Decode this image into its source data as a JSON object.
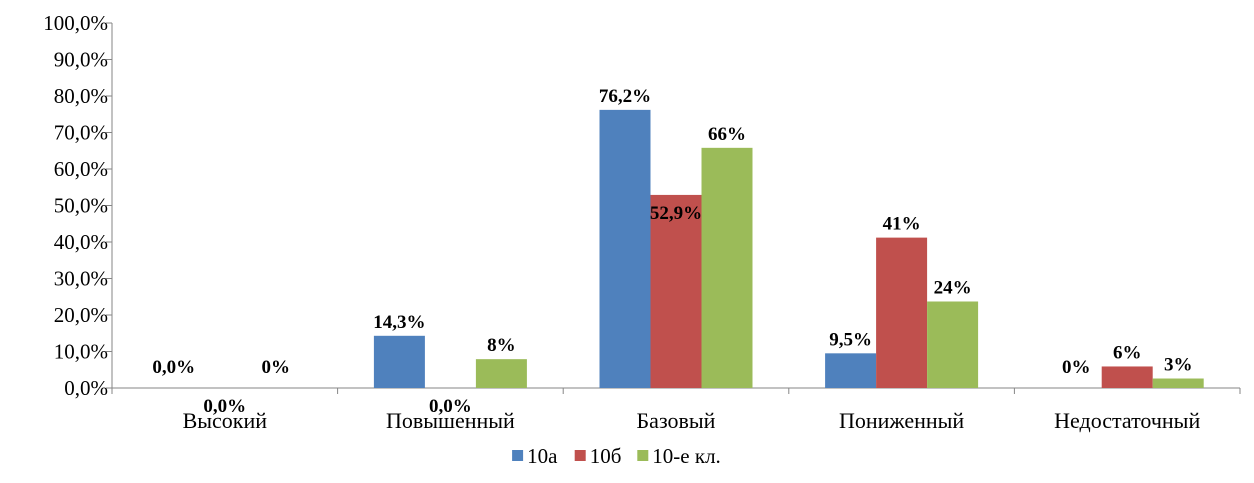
{
  "chart_data": {
    "type": "bar",
    "title": "",
    "xlabel": "",
    "ylabel": "",
    "ylim": [
      0,
      100
    ],
    "ytick_step": 10,
    "ytick_format": "one-decimal-comma-percent",
    "grid": false,
    "legend": "bottom",
    "categories": [
      "Высокий",
      "Повышенный",
      "Базовый",
      "Пониженный",
      "Недостаточный"
    ],
    "series": [
      {
        "name": "10а",
        "color": "#4F81BD",
        "values": [
          0.0,
          14.3,
          76.2,
          9.5,
          0.0
        ],
        "labels": [
          "0,0%",
          "14,3%",
          "76,2%",
          "9,5%",
          "0%"
        ]
      },
      {
        "name": "10б",
        "color": "#C0504D",
        "values": [
          0.0,
          0.0,
          52.9,
          41.2,
          5.9
        ],
        "labels": [
          "0,0%",
          "0,0%",
          "52,9%",
          "41%",
          "6%"
        ]
      },
      {
        "name": "10-е кл.",
        "color": "#9BBB59",
        "values": [
          0.0,
          7.9,
          65.8,
          23.7,
          2.6
        ],
        "labels": [
          "0%",
          "8%",
          "66%",
          "24%",
          "3%"
        ]
      }
    ]
  }
}
